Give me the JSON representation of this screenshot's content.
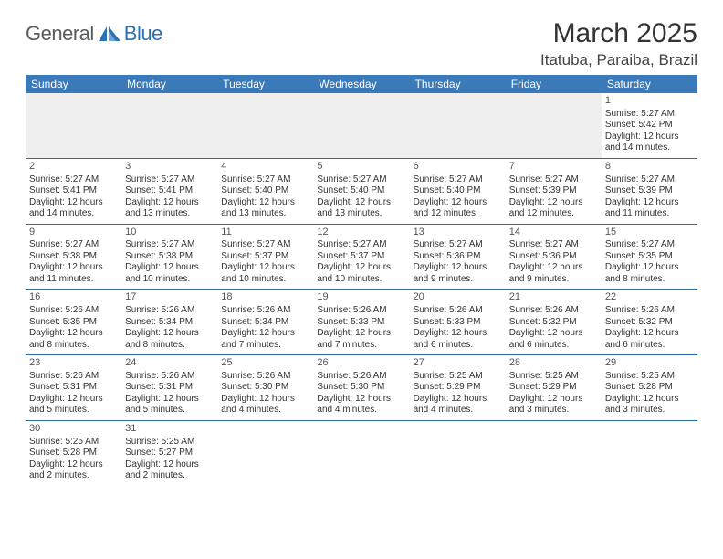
{
  "logo": {
    "text1": "General",
    "text2": "Blue",
    "mark_color": "#2a72b5",
    "mid_color": "#6fa4d4"
  },
  "header": {
    "title": "March 2025",
    "location": "Itatuba, Paraiba, Brazil"
  },
  "colors": {
    "header_bg": "#3a7ab8",
    "header_text": "#ffffff",
    "rule": "#2f6aa8",
    "empty_bg": "#efefef"
  },
  "weekdays": [
    "Sunday",
    "Monday",
    "Tuesday",
    "Wednesday",
    "Thursday",
    "Friday",
    "Saturday"
  ],
  "layout": {
    "first_weekday_index": 6,
    "days_in_month": 31
  },
  "days": {
    "1": {
      "sunrise": "5:27 AM",
      "sunset": "5:42 PM",
      "daylight": "12 hours and 14 minutes."
    },
    "2": {
      "sunrise": "5:27 AM",
      "sunset": "5:41 PM",
      "daylight": "12 hours and 14 minutes."
    },
    "3": {
      "sunrise": "5:27 AM",
      "sunset": "5:41 PM",
      "daylight": "12 hours and 13 minutes."
    },
    "4": {
      "sunrise": "5:27 AM",
      "sunset": "5:40 PM",
      "daylight": "12 hours and 13 minutes."
    },
    "5": {
      "sunrise": "5:27 AM",
      "sunset": "5:40 PM",
      "daylight": "12 hours and 13 minutes."
    },
    "6": {
      "sunrise": "5:27 AM",
      "sunset": "5:40 PM",
      "daylight": "12 hours and 12 minutes."
    },
    "7": {
      "sunrise": "5:27 AM",
      "sunset": "5:39 PM",
      "daylight": "12 hours and 12 minutes."
    },
    "8": {
      "sunrise": "5:27 AM",
      "sunset": "5:39 PM",
      "daylight": "12 hours and 11 minutes."
    },
    "9": {
      "sunrise": "5:27 AM",
      "sunset": "5:38 PM",
      "daylight": "12 hours and 11 minutes."
    },
    "10": {
      "sunrise": "5:27 AM",
      "sunset": "5:38 PM",
      "daylight": "12 hours and 10 minutes."
    },
    "11": {
      "sunrise": "5:27 AM",
      "sunset": "5:37 PM",
      "daylight": "12 hours and 10 minutes."
    },
    "12": {
      "sunrise": "5:27 AM",
      "sunset": "5:37 PM",
      "daylight": "12 hours and 10 minutes."
    },
    "13": {
      "sunrise": "5:27 AM",
      "sunset": "5:36 PM",
      "daylight": "12 hours and 9 minutes."
    },
    "14": {
      "sunrise": "5:27 AM",
      "sunset": "5:36 PM",
      "daylight": "12 hours and 9 minutes."
    },
    "15": {
      "sunrise": "5:27 AM",
      "sunset": "5:35 PM",
      "daylight": "12 hours and 8 minutes."
    },
    "16": {
      "sunrise": "5:26 AM",
      "sunset": "5:35 PM",
      "daylight": "12 hours and 8 minutes."
    },
    "17": {
      "sunrise": "5:26 AM",
      "sunset": "5:34 PM",
      "daylight": "12 hours and 8 minutes."
    },
    "18": {
      "sunrise": "5:26 AM",
      "sunset": "5:34 PM",
      "daylight": "12 hours and 7 minutes."
    },
    "19": {
      "sunrise": "5:26 AM",
      "sunset": "5:33 PM",
      "daylight": "12 hours and 7 minutes."
    },
    "20": {
      "sunrise": "5:26 AM",
      "sunset": "5:33 PM",
      "daylight": "12 hours and 6 minutes."
    },
    "21": {
      "sunrise": "5:26 AM",
      "sunset": "5:32 PM",
      "daylight": "12 hours and 6 minutes."
    },
    "22": {
      "sunrise": "5:26 AM",
      "sunset": "5:32 PM",
      "daylight": "12 hours and 6 minutes."
    },
    "23": {
      "sunrise": "5:26 AM",
      "sunset": "5:31 PM",
      "daylight": "12 hours and 5 minutes."
    },
    "24": {
      "sunrise": "5:26 AM",
      "sunset": "5:31 PM",
      "daylight": "12 hours and 5 minutes."
    },
    "25": {
      "sunrise": "5:26 AM",
      "sunset": "5:30 PM",
      "daylight": "12 hours and 4 minutes."
    },
    "26": {
      "sunrise": "5:26 AM",
      "sunset": "5:30 PM",
      "daylight": "12 hours and 4 minutes."
    },
    "27": {
      "sunrise": "5:25 AM",
      "sunset": "5:29 PM",
      "daylight": "12 hours and 4 minutes."
    },
    "28": {
      "sunrise": "5:25 AM",
      "sunset": "5:29 PM",
      "daylight": "12 hours and 3 minutes."
    },
    "29": {
      "sunrise": "5:25 AM",
      "sunset": "5:28 PM",
      "daylight": "12 hours and 3 minutes."
    },
    "30": {
      "sunrise": "5:25 AM",
      "sunset": "5:28 PM",
      "daylight": "12 hours and 2 minutes."
    },
    "31": {
      "sunrise": "5:25 AM",
      "sunset": "5:27 PM",
      "daylight": "12 hours and 2 minutes."
    }
  },
  "labels": {
    "sunrise": "Sunrise:",
    "sunset": "Sunset:",
    "daylight": "Daylight:"
  }
}
